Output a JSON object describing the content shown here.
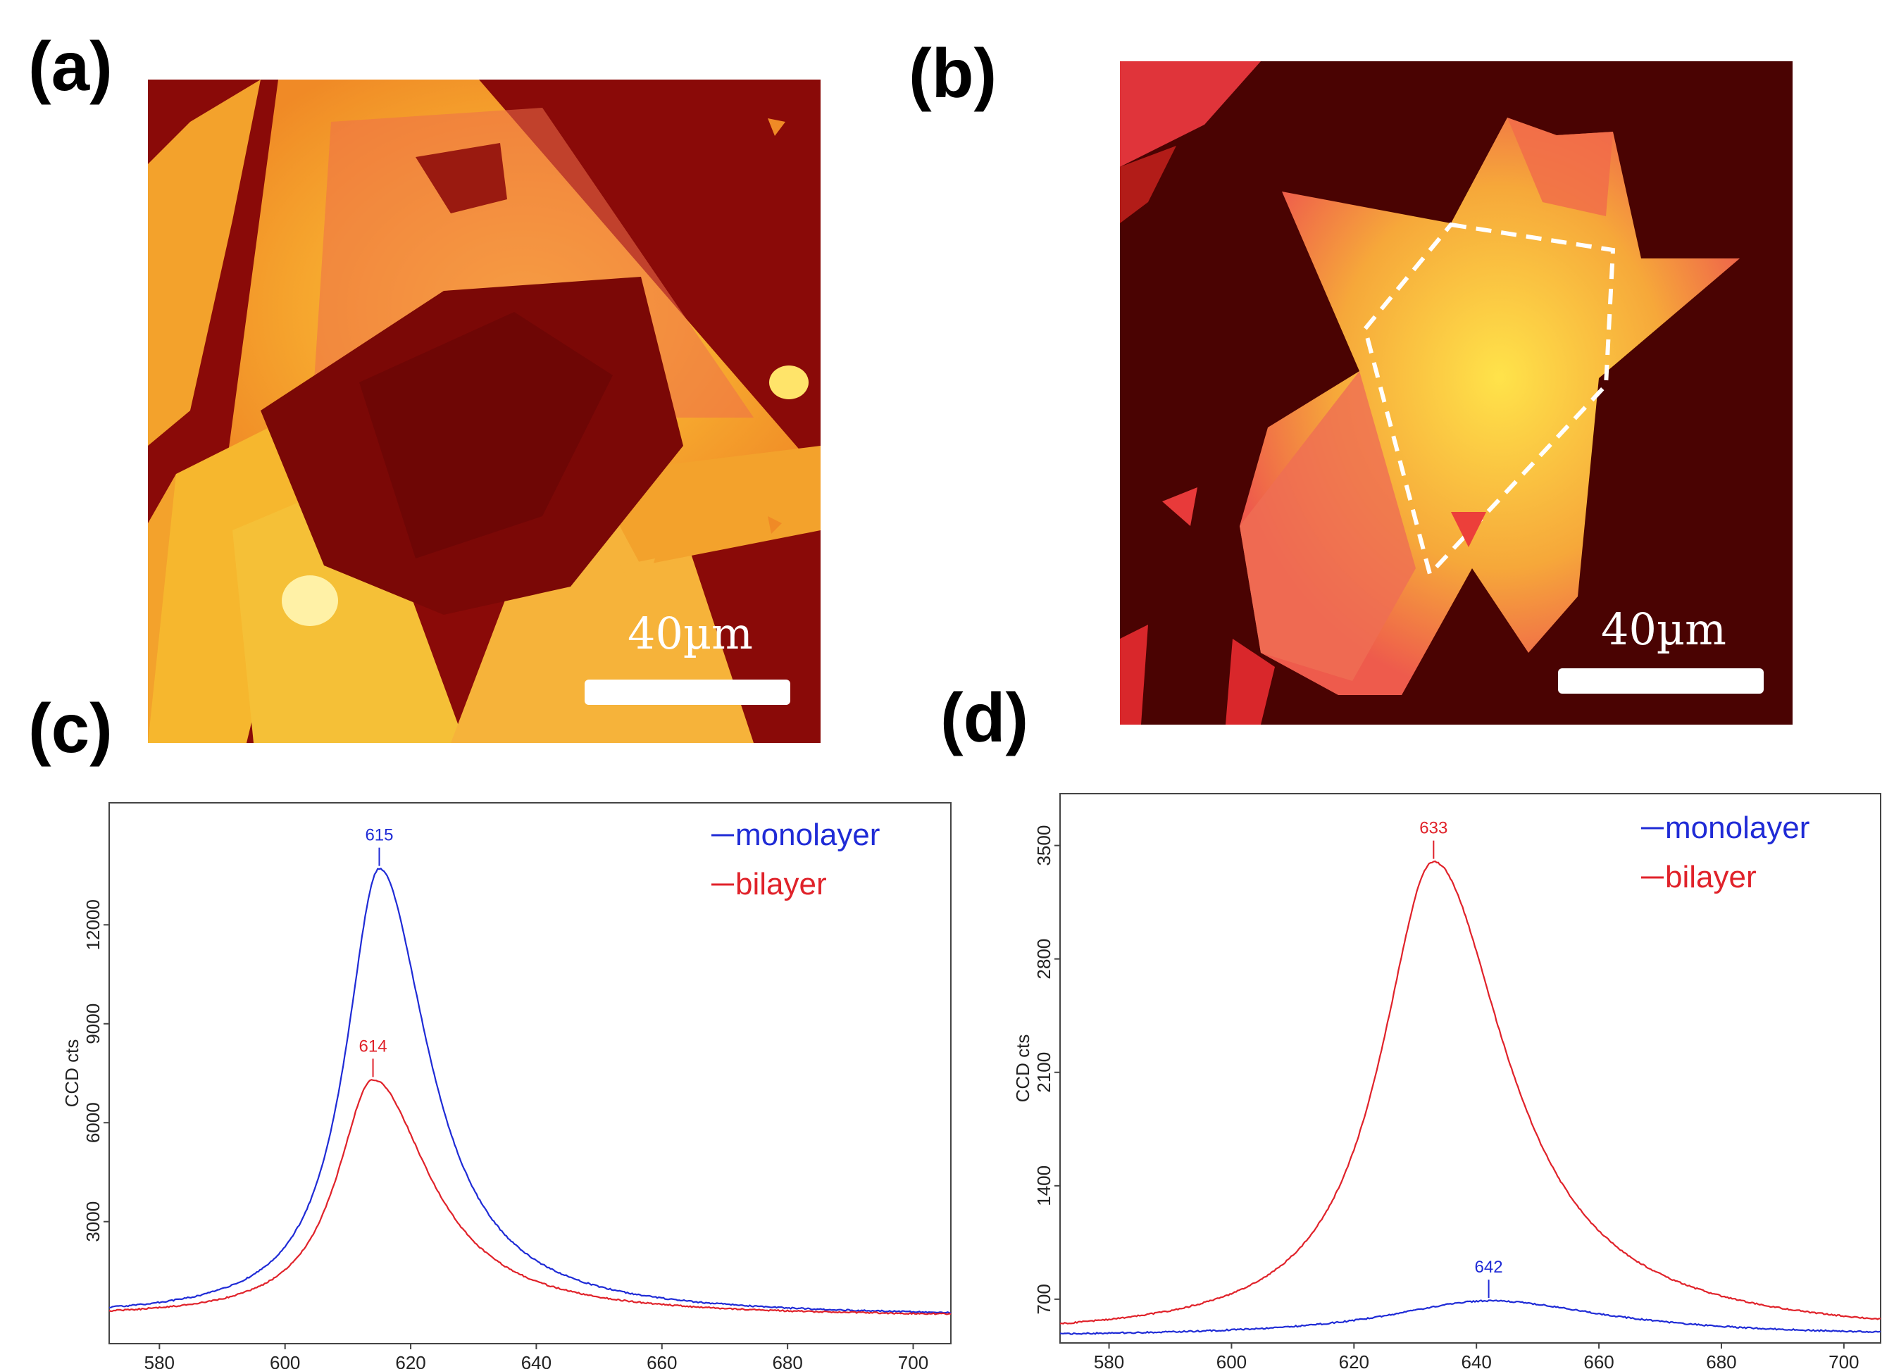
{
  "panels": {
    "a": {
      "label": "(a)",
      "scalebar_label": "40µm"
    },
    "b": {
      "label": "(b)",
      "scalebar_label": "40µm"
    },
    "c": {
      "label": "(c)"
    },
    "d": {
      "label": "(d)"
    }
  },
  "colors": {
    "monolayer": "#1f2bd6",
    "bilayer": "#e0222a",
    "micro_background": "#8a0a08",
    "micro_flake": "#f39a2a",
    "micro_bright": "#ffe24a"
  },
  "chart_data": [
    {
      "id": "c",
      "type": "line",
      "ylabel": "CCD cts",
      "xlabel": "",
      "xlim": [
        572,
        706
      ],
      "ylim": [
        -700,
        15700
      ],
      "xticks": [
        580,
        600,
        620,
        640,
        660,
        680,
        700
      ],
      "yticks": [
        3000,
        6000,
        9000,
        12000
      ],
      "legend_position": "top-right",
      "series": [
        {
          "name": "monolayer",
          "color": "#1f2bd6",
          "peak_x": 615,
          "peak_y": 13700,
          "baseline": 100,
          "width_left": 6.5,
          "width_right": 9.5,
          "annotation": "615"
        },
        {
          "name": "bilayer",
          "color": "#e0222a",
          "peak_x": 614,
          "peak_y": 7300,
          "baseline": 100,
          "width_left": 7.0,
          "width_right": 11.0,
          "annotation": "614"
        }
      ]
    },
    {
      "id": "d",
      "type": "line",
      "ylabel": "CCD cts",
      "xlabel": "",
      "xlim": [
        572,
        706
      ],
      "ylim": [
        430,
        3820
      ],
      "xticks": [
        580,
        600,
        620,
        640,
        660,
        680,
        700
      ],
      "yticks": [
        700,
        1400,
        2100,
        2800,
        3500
      ],
      "legend_position": "top-right",
      "series": [
        {
          "name": "monolayer",
          "color": "#1f2bd6",
          "peak_x": 642,
          "peak_y": 690,
          "baseline": 470,
          "width_left": 20.0,
          "width_right": 24.0,
          "annotation": "642"
        },
        {
          "name": "bilayer",
          "color": "#e0222a",
          "peak_x": 633,
          "peak_y": 3400,
          "baseline": 465,
          "width_left": 10.5,
          "width_right": 14.5,
          "annotation": "633"
        }
      ]
    }
  ]
}
